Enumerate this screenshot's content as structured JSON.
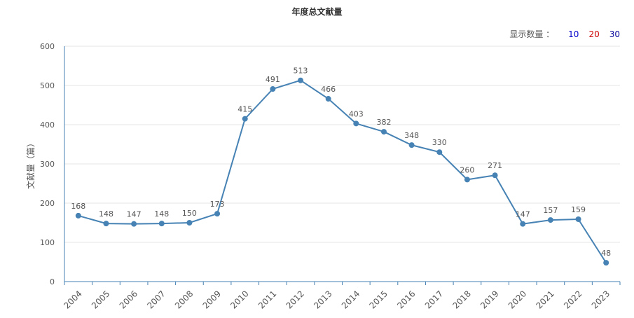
{
  "count_selector": {
    "label": "显示数量 ：",
    "options": [
      {
        "label": "10",
        "color": "#0000cc"
      },
      {
        "label": "20",
        "color": "#cc0000"
      },
      {
        "label": "30",
        "color": "#000099"
      }
    ]
  },
  "colors": {
    "line": "#4682b4",
    "grid": "#e5e5e5",
    "axis": "#4682b4"
  },
  "chart_data": {
    "type": "line",
    "title": "年度总文献量",
    "xlabel": "",
    "ylabel": "文献量（篇）",
    "ylim": [
      0,
      600
    ],
    "yticks": [
      0,
      100,
      200,
      300,
      400,
      500,
      600
    ],
    "grid": true,
    "categories": [
      "2004",
      "2005",
      "2006",
      "2007",
      "2008",
      "2009",
      "2010",
      "2011",
      "2012",
      "2013",
      "2014",
      "2015",
      "2016",
      "2017",
      "2018",
      "2019",
      "2020",
      "2021",
      "2022",
      "2023"
    ],
    "series": [
      {
        "values": [
          168,
          148,
          147,
          148,
          150,
          173,
          415,
          491,
          513,
          466,
          403,
          382,
          348,
          330,
          260,
          271,
          147,
          157,
          159,
          48
        ]
      }
    ]
  }
}
